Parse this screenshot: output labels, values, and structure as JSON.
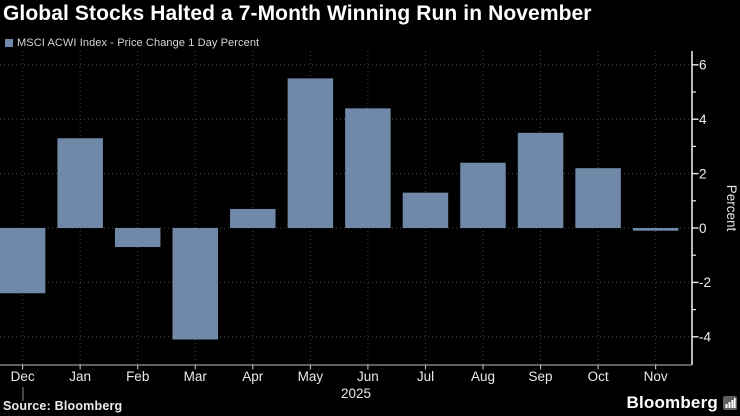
{
  "title": "Global Stocks Halted a 7-Month Winning Run in November",
  "legend": {
    "swatch_icon": "series-swatch-square",
    "label": "MSCI ACWI Index - Price Change 1 Day Percent"
  },
  "source": "Source: Bloomberg",
  "branding": {
    "logo_text": "Bloomberg",
    "logo_mark": "bar-chart-icon"
  },
  "colors": {
    "background": "#000000",
    "bar": "#7189a9",
    "grid": "#454545",
    "axis_right": "#e8e8e8",
    "axis_bottom": "#9a9a9a",
    "tick_label": "#f0f0f0",
    "month_label": "#e8e8e8",
    "title_text": "#ffffff",
    "legend_text": "#d6d6d6"
  },
  "chart_data": {
    "type": "bar",
    "categories": [
      "Dec",
      "Jan",
      "Feb",
      "Mar",
      "Apr",
      "May",
      "Jun",
      "Jul",
      "Aug",
      "Sep",
      "Oct",
      "Nov"
    ],
    "values": [
      -2.4,
      3.3,
      -0.7,
      -4.1,
      0.7,
      5.5,
      4.4,
      1.3,
      2.4,
      3.5,
      2.2,
      -0.1
    ],
    "series_name": "MSCI ACWI Index - Price Change 1 Day Percent",
    "x_period_label": "2025",
    "ylabel": "Percent",
    "y_ticks_major": [
      6,
      4,
      2,
      0,
      -2,
      -4
    ],
    "y_ticks_minor": [
      5,
      3,
      1,
      -1,
      -3
    ],
    "ylim": [
      -5.05,
      6.5
    ],
    "grid": true,
    "legend_position": "top-left",
    "axis_side": "right"
  }
}
